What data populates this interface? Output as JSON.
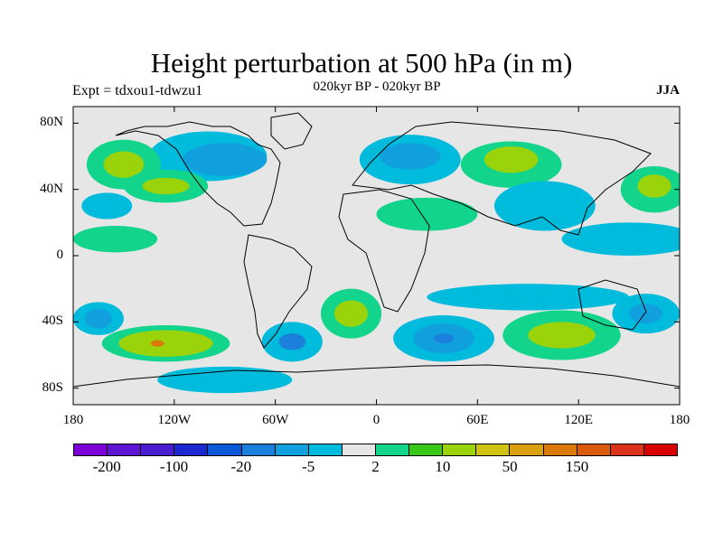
{
  "header": {
    "title": "Height perturbation at 500 hPa (in m)",
    "left": "Expt = tdxou1-tdwzu1",
    "center": "020kyr BP - 020kyr BP",
    "right": "JJA"
  },
  "map": {
    "type": "contour-fill",
    "projection": "cylindrical-equidistant",
    "lon_range": [
      -180,
      180
    ],
    "lat_range": [
      -90,
      90
    ],
    "lat_ticks": [
      {
        "v": 80,
        "label": "80N"
      },
      {
        "v": 40,
        "label": "40N"
      },
      {
        "v": 0,
        "label": "0"
      },
      {
        "v": -40,
        "label": "40S"
      },
      {
        "v": -80,
        "label": "80S"
      }
    ],
    "lon_ticks": [
      {
        "v": -180,
        "label": "180"
      },
      {
        "v": -120,
        "label": "120W"
      },
      {
        "v": -60,
        "label": "60W"
      },
      {
        "v": 0,
        "label": "0"
      },
      {
        "v": 60,
        "label": "60E"
      },
      {
        "v": 120,
        "label": "120E"
      },
      {
        "v": 180,
        "label": "180"
      }
    ],
    "background_color": "#e6e6e6",
    "blobs": [
      {
        "lon": -125,
        "lat": -53,
        "rx": 38,
        "ry": 11,
        "level": "green"
      },
      {
        "lon": -125,
        "lat": -53,
        "rx": 28,
        "ry": 8,
        "level": "yellowgreen"
      },
      {
        "lon": -130,
        "lat": -53,
        "rx": 4,
        "ry": 2,
        "level": "orange"
      },
      {
        "lon": -165,
        "lat": -38,
        "rx": 15,
        "ry": 10,
        "level": "lightblue"
      },
      {
        "lon": -165,
        "lat": -38,
        "rx": 8,
        "ry": 6,
        "level": "midblue"
      },
      {
        "lon": -50,
        "lat": -52,
        "rx": 18,
        "ry": 12,
        "level": "lightblue"
      },
      {
        "lon": -50,
        "lat": -52,
        "rx": 8,
        "ry": 5,
        "level": "blue"
      },
      {
        "lon": -15,
        "lat": -35,
        "rx": 18,
        "ry": 15,
        "level": "green"
      },
      {
        "lon": -15,
        "lat": -35,
        "rx": 10,
        "ry": 8,
        "level": "yellowgreen"
      },
      {
        "lon": 40,
        "lat": -50,
        "rx": 30,
        "ry": 14,
        "level": "lightblue"
      },
      {
        "lon": 40,
        "lat": -50,
        "rx": 18,
        "ry": 9,
        "level": "midblue"
      },
      {
        "lon": 40,
        "lat": -50,
        "rx": 6,
        "ry": 3,
        "level": "blue"
      },
      {
        "lon": 110,
        "lat": -48,
        "rx": 35,
        "ry": 15,
        "level": "green"
      },
      {
        "lon": 110,
        "lat": -48,
        "rx": 20,
        "ry": 8,
        "level": "yellowgreen"
      },
      {
        "lon": 160,
        "lat": -35,
        "rx": 20,
        "ry": 12,
        "level": "lightblue"
      },
      {
        "lon": 160,
        "lat": -35,
        "rx": 10,
        "ry": 6,
        "level": "midblue"
      },
      {
        "lon": -90,
        "lat": -75,
        "rx": 40,
        "ry": 8,
        "level": "lightblue"
      },
      {
        "lon": 90,
        "lat": -25,
        "rx": 60,
        "ry": 8,
        "level": "lightblue"
      },
      {
        "lon": -100,
        "lat": 60,
        "rx": 35,
        "ry": 15,
        "level": "lightblue"
      },
      {
        "lon": -90,
        "lat": 58,
        "rx": 25,
        "ry": 10,
        "level": "midblue"
      },
      {
        "lon": -150,
        "lat": 55,
        "rx": 22,
        "ry": 15,
        "level": "green"
      },
      {
        "lon": -150,
        "lat": 55,
        "rx": 12,
        "ry": 8,
        "level": "yellowgreen"
      },
      {
        "lon": -125,
        "lat": 42,
        "rx": 25,
        "ry": 10,
        "level": "green"
      },
      {
        "lon": -125,
        "lat": 42,
        "rx": 14,
        "ry": 5,
        "level": "yellowgreen"
      },
      {
        "lon": -160,
        "lat": 30,
        "rx": 15,
        "ry": 8,
        "level": "lightblue"
      },
      {
        "lon": 20,
        "lat": 58,
        "rx": 30,
        "ry": 15,
        "level": "lightblue"
      },
      {
        "lon": 20,
        "lat": 60,
        "rx": 18,
        "ry": 8,
        "level": "midblue"
      },
      {
        "lon": 30,
        "lat": 25,
        "rx": 30,
        "ry": 10,
        "level": "green"
      },
      {
        "lon": 80,
        "lat": 55,
        "rx": 30,
        "ry": 14,
        "level": "green"
      },
      {
        "lon": 80,
        "lat": 58,
        "rx": 16,
        "ry": 8,
        "level": "yellowgreen"
      },
      {
        "lon": 100,
        "lat": 30,
        "rx": 30,
        "ry": 15,
        "level": "lightblue"
      },
      {
        "lon": 165,
        "lat": 40,
        "rx": 20,
        "ry": 14,
        "level": "green"
      },
      {
        "lon": 165,
        "lat": 42,
        "rx": 10,
        "ry": 7,
        "level": "yellowgreen"
      },
      {
        "lon": 150,
        "lat": 10,
        "rx": 40,
        "ry": 10,
        "level": "lightblue"
      },
      {
        "lon": -155,
        "lat": 10,
        "rx": 25,
        "ry": 8,
        "level": "green"
      }
    ],
    "coastline_color": "#000000"
  },
  "colorbar": {
    "colors": [
      "#7a00d6",
      "#5e14d2",
      "#4a1ccf",
      "#1b28d2",
      "#0b58d8",
      "#1a80dc",
      "#10a0de",
      "#00bbdb",
      "#e6e6e6",
      "#12d48a",
      "#38c81a",
      "#9ad30a",
      "#d0c210",
      "#dba010",
      "#db7a0a",
      "#db5a0a",
      "#d9331a",
      "#d90000"
    ],
    "labels": [
      {
        "text": "-200",
        "index": 1
      },
      {
        "text": "-100",
        "index": 3
      },
      {
        "text": "-20",
        "index": 5
      },
      {
        "text": "-5",
        "index": 7
      },
      {
        "text": "2",
        "index": 9
      },
      {
        "text": "10",
        "index": 11
      },
      {
        "text": "50",
        "index": 13
      },
      {
        "text": "150",
        "index": 15
      }
    ]
  },
  "level_colors": {
    "blue": "#1a80dc",
    "midblue": "#10a0de",
    "lightblue": "#00bbdb",
    "green": "#12d48a",
    "yellowgreen": "#9ad30a",
    "orange": "#db7a0a"
  }
}
